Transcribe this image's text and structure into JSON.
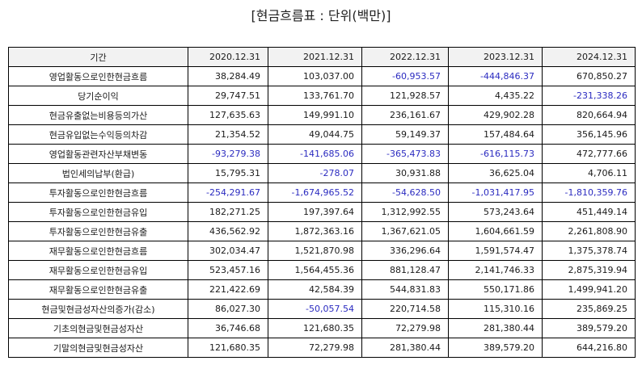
{
  "title": "[현금흐름표 : 단위(백만)]",
  "colors": {
    "negative": "#2b2bc0",
    "header_bg": "#f2f2f2",
    "border": "#000000"
  },
  "table": {
    "headers": [
      "기간",
      "2020.12.31",
      "2021.12.31",
      "2022.12.31",
      "2023.12.31",
      "2024.12.31"
    ],
    "rows": [
      {
        "label": "영업활동으로인한현금흐름",
        "values": [
          "38,284.49",
          "103,037.00",
          "-60,953.57",
          "-444,846.37",
          "670,850.27"
        ]
      },
      {
        "label": "당기순이익",
        "values": [
          "29,747.51",
          "133,761.70",
          "121,928.57",
          "4,435.22",
          "-231,338.26"
        ]
      },
      {
        "label": "현금유출없는비용등의가산",
        "values": [
          "127,635.63",
          "149,991.10",
          "236,161.67",
          "429,902.28",
          "820,664.94"
        ]
      },
      {
        "label": "현금유입없는수익등의차감",
        "values": [
          "21,354.52",
          "49,044.75",
          "59,149.37",
          "157,484.64",
          "356,145.96"
        ]
      },
      {
        "label": "영업활동관련자산부채변동",
        "values": [
          "-93,279.38",
          "-141,685.06",
          "-365,473.83",
          "-616,115.73",
          "472,777.66"
        ]
      },
      {
        "label": "법인세의납부(환급)",
        "values": [
          "15,795.31",
          "-278.07",
          "30,931.88",
          "36,625.04",
          "4,706.11"
        ]
      },
      {
        "label": "투자활동으로인한현금흐름",
        "values": [
          "-254,291.67",
          "-1,674,965.52",
          "-54,628.50",
          "-1,031,417.95",
          "-1,810,359.76"
        ]
      },
      {
        "label": "투자활동으로인한현금유입",
        "values": [
          "182,271.25",
          "197,397.64",
          "1,312,992.55",
          "573,243.64",
          "451,449.14"
        ]
      },
      {
        "label": "투자활동으로인한현금유출",
        "values": [
          "436,562.92",
          "1,872,363.16",
          "1,367,621.05",
          "1,604,661.59",
          "2,261,808.90"
        ]
      },
      {
        "label": "재무활동으로인한현금흐름",
        "values": [
          "302,034.47",
          "1,521,870.98",
          "336,296.64",
          "1,591,574.47",
          "1,375,378.74"
        ]
      },
      {
        "label": "재무활동으로인한현금유입",
        "values": [
          "523,457.16",
          "1,564,455.36",
          "881,128.47",
          "2,141,746.33",
          "2,875,319.94"
        ]
      },
      {
        "label": "재무활동으로인한현금유출",
        "values": [
          "221,422.69",
          "42,584.39",
          "544,831.83",
          "550,171.86",
          "1,499,941.20"
        ]
      },
      {
        "label": "현금및현금성자산의증가(감소)",
        "values": [
          "86,027.30",
          "-50,057.54",
          "220,714.58",
          "115,310.16",
          "235,869.25"
        ]
      },
      {
        "label": "기초의현금및현금성자산",
        "values": [
          "36,746.68",
          "121,680.35",
          "72,279.98",
          "281,380.44",
          "389,579.20"
        ]
      },
      {
        "label": "기말의현금및현금성자산",
        "values": [
          "121,680.35",
          "72,279.98",
          "281,380.44",
          "389,579.20",
          "644,216.80"
        ]
      }
    ]
  }
}
